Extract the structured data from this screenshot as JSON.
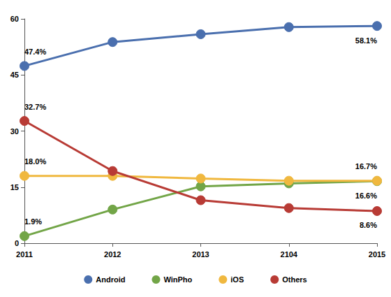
{
  "chart_data": {
    "type": "line",
    "categories": [
      "2011",
      "2012",
      "2013",
      "2104",
      "2015"
    ],
    "series": [
      {
        "name": "Android",
        "color": "#4a6fae",
        "values": [
          47.4,
          53.8,
          55.9,
          57.8,
          58.1
        ],
        "value_labels": [
          "47.4%",
          null,
          null,
          null,
          "58.1%"
        ]
      },
      {
        "name": "WinPho",
        "color": "#72a547",
        "values": [
          1.9,
          9.0,
          15.2,
          16.0,
          16.6
        ],
        "value_labels": [
          "1.9%",
          null,
          null,
          null,
          "16.6%"
        ]
      },
      {
        "name": "iOS",
        "color": "#f0b83f",
        "values": [
          18.0,
          18.0,
          17.3,
          16.7,
          16.7
        ],
        "value_labels": [
          "18.0%",
          null,
          null,
          null,
          "16.7%"
        ]
      },
      {
        "name": "Others",
        "color": "#b83b35",
        "values": [
          32.7,
          19.3,
          11.5,
          9.4,
          8.6
        ],
        "value_labels": [
          "32.7%",
          null,
          null,
          null,
          "8.6%"
        ]
      }
    ],
    "ylim": [
      0,
      60
    ],
    "yticks": [
      0,
      15,
      30,
      45,
      60
    ],
    "grid": false,
    "legend": "bottom",
    "marker": "circle"
  }
}
